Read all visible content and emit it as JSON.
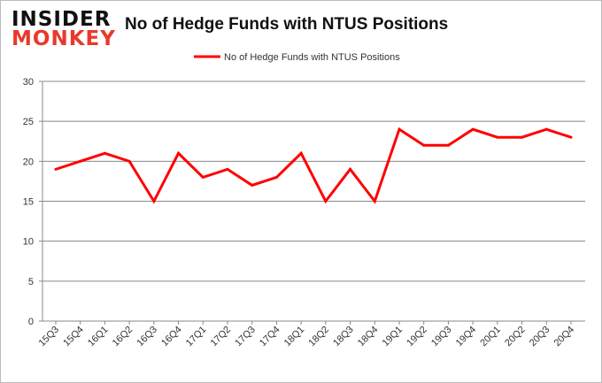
{
  "logo": {
    "line1": "INSIDER",
    "line2": "MONKEY"
  },
  "chart_data": {
    "type": "line",
    "title": "No of Hedge Funds with NTUS Positions",
    "xlabel": "",
    "ylabel": "",
    "ylim": [
      0,
      30
    ],
    "yticks": [
      0,
      5,
      10,
      15,
      20,
      25,
      30
    ],
    "grid": true,
    "legend_position": "top-center",
    "categories": [
      "15Q3",
      "15Q4",
      "16Q1",
      "16Q2",
      "16Q3",
      "16Q4",
      "17Q1",
      "17Q2",
      "17Q3",
      "17Q4",
      "18Q1",
      "18Q2",
      "18Q3",
      "18Q4",
      "19Q1",
      "19Q2",
      "19Q3",
      "19Q4",
      "20Q1",
      "20Q2",
      "20Q3",
      "20Q4"
    ],
    "series": [
      {
        "name": "No of Hedge Funds with NTUS  Positions",
        "color": "#ff0000",
        "values": [
          19,
          20,
          21,
          20,
          15,
          21,
          18,
          19,
          17,
          18,
          21,
          15,
          19,
          15,
          24,
          22,
          22,
          24,
          23,
          23,
          24,
          23
        ]
      }
    ]
  }
}
